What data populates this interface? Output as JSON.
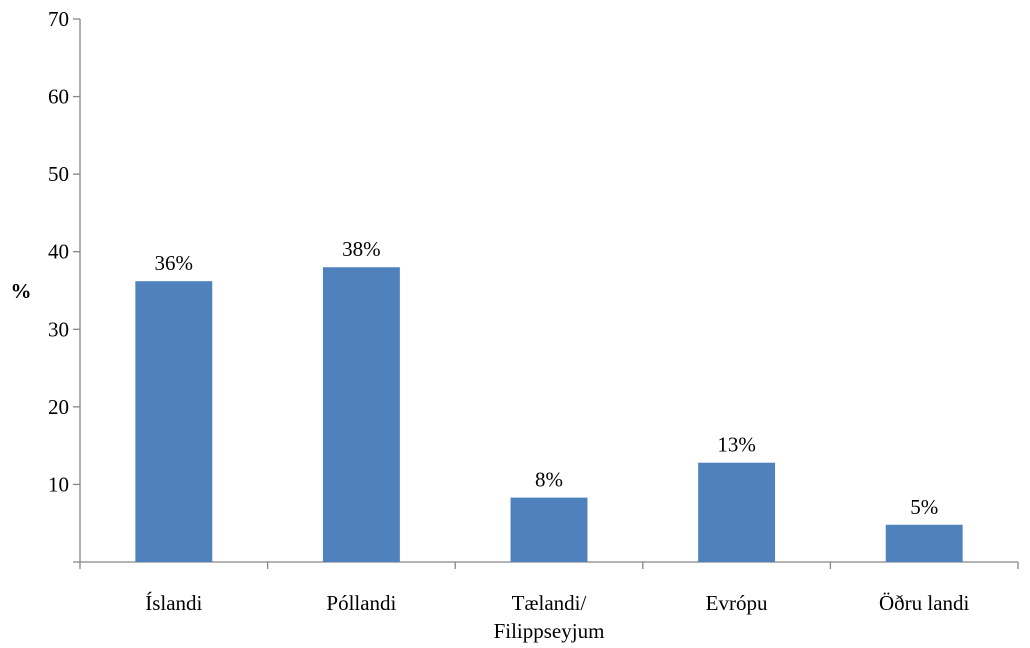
{
  "chart_data": {
    "type": "bar",
    "title": "",
    "xlabel": "",
    "ylabel": "%",
    "ylim": [
      0,
      70
    ],
    "yticks": [
      10,
      20,
      30,
      40,
      50,
      60,
      70
    ],
    "grid": false,
    "legend": "none",
    "bar_color": "#4F81BD",
    "categories": [
      [
        "Íslandi"
      ],
      [
        "Póllandi"
      ],
      [
        "Tælandi/",
        "Filippseyjum"
      ],
      [
        "Evrópu"
      ],
      [
        "Öðru landi"
      ]
    ],
    "values": [
      36.2,
      38.0,
      8.3,
      12.8,
      4.8
    ],
    "data_labels": [
      "36%",
      "38%",
      "8%",
      "13%",
      "5%"
    ]
  }
}
